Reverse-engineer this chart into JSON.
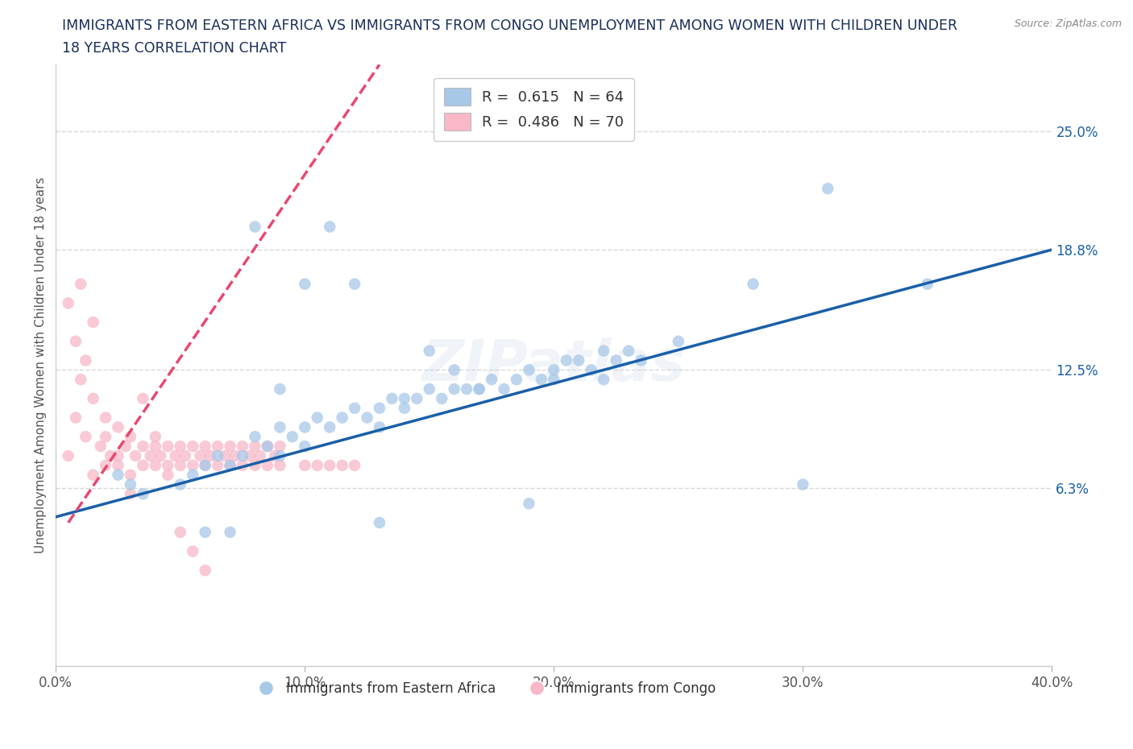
{
  "title_line1": "IMMIGRANTS FROM EASTERN AFRICA VS IMMIGRANTS FROM CONGO UNEMPLOYMENT AMONG WOMEN WITH CHILDREN UNDER",
  "title_line2": "18 YEARS CORRELATION CHART",
  "source_text": "Source: ZipAtlas.com",
  "watermark": "ZIPatlas",
  "ylabel": "Unemployment Among Women with Children Under 18 years",
  "xlim": [
    0.0,
    0.4
  ],
  "ylim": [
    -0.03,
    0.285
  ],
  "xtick_labels": [
    "0.0%",
    "10.0%",
    "20.0%",
    "30.0%",
    "40.0%"
  ],
  "xtick_vals": [
    0.0,
    0.1,
    0.2,
    0.3,
    0.4
  ],
  "right_ytick_labels": [
    "25.0%",
    "18.8%",
    "12.5%",
    "6.3%"
  ],
  "right_ytick_vals": [
    0.25,
    0.188,
    0.125,
    0.063
  ],
  "blue_R": 0.615,
  "blue_N": 64,
  "pink_R": 0.486,
  "pink_N": 70,
  "legend_label_blue": "Immigrants from Eastern Africa",
  "legend_label_pink": "Immigrants from Congo",
  "blue_color": "#a8c8e8",
  "pink_color": "#f8b8c8",
  "blue_line_color": "#1a5fa8",
  "pink_line_color": "#e84870",
  "background_color": "#ffffff",
  "grid_color": "#d8d8d8",
  "title_color": "#1a2e5a",
  "blue_line_x0": 0.0,
  "blue_line_y0": 0.048,
  "blue_line_x1": 0.4,
  "blue_line_y1": 0.188,
  "pink_line_x0": 0.005,
  "pink_line_y0": 0.045,
  "pink_line_x1": 0.13,
  "pink_line_y1": 0.285,
  "blue_scatter_x": [
    0.025,
    0.03,
    0.035,
    0.05,
    0.055,
    0.06,
    0.065,
    0.07,
    0.075,
    0.08,
    0.085,
    0.09,
    0.09,
    0.095,
    0.1,
    0.1,
    0.105,
    0.11,
    0.115,
    0.12,
    0.125,
    0.13,
    0.13,
    0.135,
    0.14,
    0.145,
    0.15,
    0.155,
    0.16,
    0.165,
    0.17,
    0.175,
    0.18,
    0.185,
    0.19,
    0.195,
    0.2,
    0.205,
    0.21,
    0.215,
    0.22,
    0.225,
    0.23,
    0.235,
    0.06,
    0.08,
    0.1,
    0.15,
    0.2,
    0.28,
    0.3,
    0.31,
    0.35,
    0.12,
    0.09,
    0.07,
    0.11,
    0.17,
    0.25,
    0.14,
    0.16,
    0.22,
    0.19,
    0.13
  ],
  "blue_scatter_y": [
    0.07,
    0.065,
    0.06,
    0.065,
    0.07,
    0.075,
    0.08,
    0.075,
    0.08,
    0.09,
    0.085,
    0.08,
    0.095,
    0.09,
    0.095,
    0.085,
    0.1,
    0.095,
    0.1,
    0.105,
    0.1,
    0.105,
    0.095,
    0.11,
    0.105,
    0.11,
    0.115,
    0.11,
    0.115,
    0.115,
    0.115,
    0.12,
    0.115,
    0.12,
    0.125,
    0.12,
    0.125,
    0.13,
    0.13,
    0.125,
    0.135,
    0.13,
    0.135,
    0.13,
    0.04,
    0.2,
    0.17,
    0.135,
    0.12,
    0.17,
    0.065,
    0.22,
    0.17,
    0.17,
    0.115,
    0.04,
    0.2,
    0.115,
    0.14,
    0.11,
    0.125,
    0.12,
    0.055,
    0.045
  ],
  "pink_scatter_x": [
    0.005,
    0.008,
    0.01,
    0.012,
    0.015,
    0.015,
    0.018,
    0.02,
    0.02,
    0.022,
    0.025,
    0.025,
    0.028,
    0.03,
    0.03,
    0.032,
    0.035,
    0.035,
    0.038,
    0.04,
    0.04,
    0.042,
    0.045,
    0.045,
    0.048,
    0.05,
    0.05,
    0.052,
    0.055,
    0.055,
    0.058,
    0.06,
    0.06,
    0.062,
    0.065,
    0.065,
    0.068,
    0.07,
    0.07,
    0.072,
    0.075,
    0.075,
    0.078,
    0.08,
    0.08,
    0.082,
    0.085,
    0.085,
    0.088,
    0.09,
    0.09,
    0.1,
    0.105,
    0.11,
    0.115,
    0.12,
    0.005,
    0.008,
    0.01,
    0.012,
    0.015,
    0.02,
    0.025,
    0.03,
    0.035,
    0.04,
    0.045,
    0.05,
    0.055,
    0.06
  ],
  "pink_scatter_y": [
    0.08,
    0.1,
    0.12,
    0.09,
    0.07,
    0.11,
    0.085,
    0.075,
    0.09,
    0.08,
    0.075,
    0.095,
    0.085,
    0.07,
    0.09,
    0.08,
    0.075,
    0.085,
    0.08,
    0.075,
    0.085,
    0.08,
    0.075,
    0.085,
    0.08,
    0.075,
    0.085,
    0.08,
    0.075,
    0.085,
    0.08,
    0.075,
    0.085,
    0.08,
    0.075,
    0.085,
    0.08,
    0.075,
    0.085,
    0.08,
    0.075,
    0.085,
    0.08,
    0.075,
    0.085,
    0.08,
    0.075,
    0.085,
    0.08,
    0.075,
    0.085,
    0.075,
    0.075,
    0.075,
    0.075,
    0.075,
    0.16,
    0.14,
    0.17,
    0.13,
    0.15,
    0.1,
    0.08,
    0.06,
    0.11,
    0.09,
    0.07,
    0.04,
    0.03,
    0.02
  ]
}
